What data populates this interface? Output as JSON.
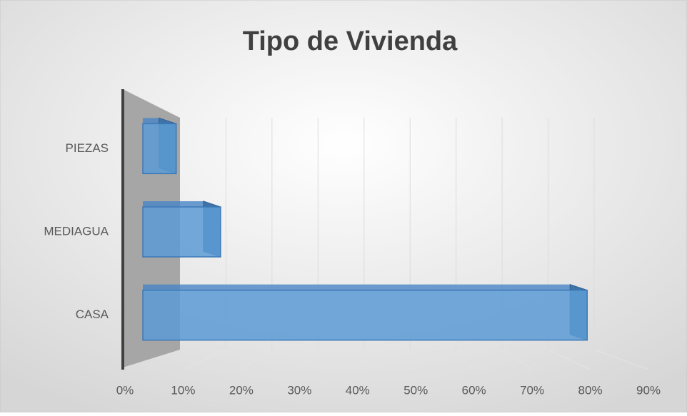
{
  "chart_data": {
    "type": "bar3d",
    "orientation": "horizontal",
    "title": "Tipo de Vivienda",
    "categories": [
      "PIEZAS",
      "MEDIAGUA",
      "CASA"
    ],
    "values": [
      6,
      14,
      80
    ],
    "color": "#5b9bd5",
    "xlim": [
      0,
      90
    ],
    "xticks": [
      {
        "value": 0,
        "label": "0%"
      },
      {
        "value": 10,
        "label": "10%"
      },
      {
        "value": 20,
        "label": "20%"
      },
      {
        "value": 30,
        "label": "30%"
      },
      {
        "value": 40,
        "label": "40%"
      },
      {
        "value": 50,
        "label": "50%"
      },
      {
        "value": 60,
        "label": "60%"
      },
      {
        "value": 70,
        "label": "70%"
      },
      {
        "value": 80,
        "label": "80%"
      },
      {
        "value": 90,
        "label": "90%"
      }
    ],
    "grid": true
  }
}
